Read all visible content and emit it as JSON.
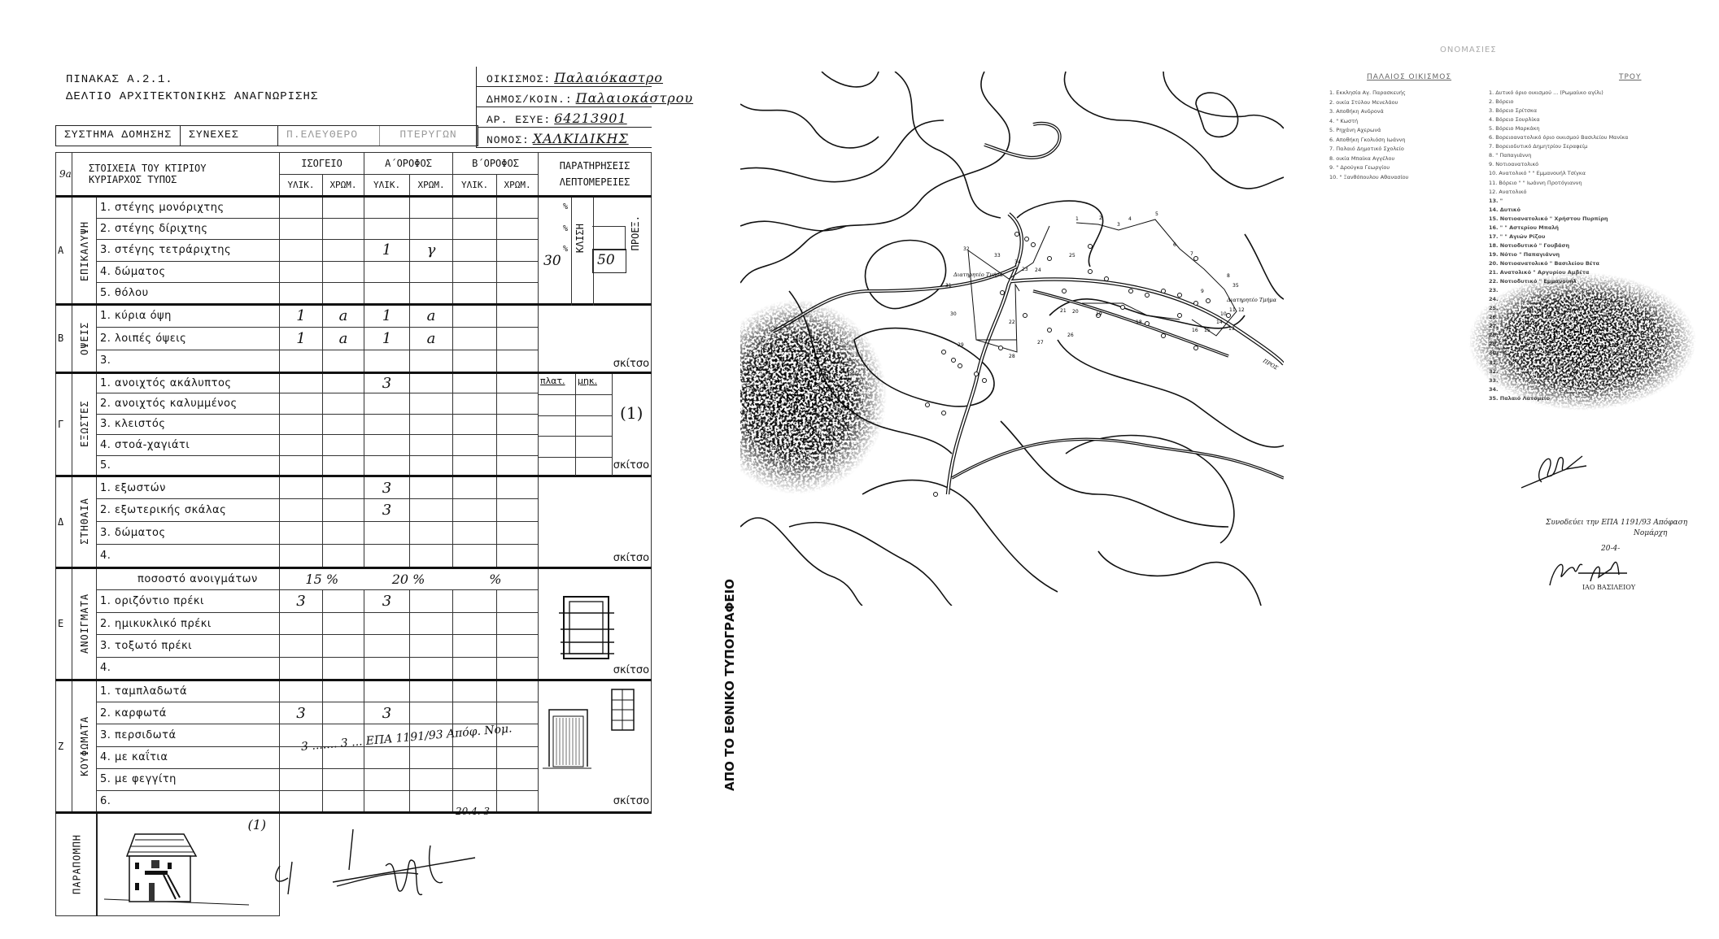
{
  "form": {
    "title": "ΠΙΝΑΚΑΣ Α.2.1.",
    "subtitle": "ΔΕΛΤΙΟ ΑΡΧΙΤΕΚΤΟΝΙΚΗΣ ΑΝΑΓΝΩΡΙΣΗΣ",
    "info": [
      {
        "label": "ΟΙΚΙΣΜΟΣ:",
        "value": "Παλαιόκαστρο"
      },
      {
        "label": "ΔΗΜΟΣ/ΚΟΙΝ.:",
        "value": "Παλαιοκάστρου"
      },
      {
        "label": "ΑΡ. ΕΣΥΕ:",
        "value": "64213901"
      },
      {
        "label": "ΝΟΜΟΣ:",
        "value": "ΧΑΛΚΙΔΙΚΗΣ"
      }
    ],
    "system": {
      "label": "ΣΥΣΤΗΜΑ ΔΟΜΗΣΗΣ",
      "options": [
        "ΣΥΝΕΧΕΣ",
        "Π.ΕΛΕΥΘΕΡΟ",
        "ΠΤΕΡΥΓΩΝ"
      ]
    },
    "header": {
      "code": "9a",
      "elements": "ΣΤΟΙΧΕΙΑ ΤΟΥ ΚΤΙΡΙΟΥ",
      "type": "ΚΥΡΙΑΡΧΟΣ ΤΥΠΟΣ",
      "floors": [
        "ΙΣΟΓΕΙΟ",
        "Α΄ΟΡΟΦΟΣ",
        "Β΄ΟΡΟΦΟΣ"
      ],
      "sub": [
        "ΥΛΙΚ.",
        "ΧΡΩΜ.",
        "ΥΛΙΚ.",
        "ΧΡΩΜ.",
        "ΥΛΙΚ.",
        "ΧΡΩΜ."
      ],
      "remarks1": "ΠΑΡΑΤΗΡΗΣΕΙΣ",
      "remarks2": "ΛΕΠΤΟΜΕΡΕΙΕΣ"
    },
    "sections": [
      {
        "letter": "Α",
        "name": "ΕΠΙΚΑΛΥΨΗ",
        "rows": [
          {
            "label": "1. στέγης μονόριχτης",
            "cells": [
              "",
              "",
              "",
              "",
              "",
              ""
            ]
          },
          {
            "label": "2. στέγης δίριχτης",
            "cells": [
              "",
              "",
              "",
              "",
              "",
              ""
            ]
          },
          {
            "label": "3. στέγης τετράριχτης",
            "cells": [
              "",
              "",
              "1",
              "γ",
              "",
              ""
            ]
          },
          {
            "label": "4. δώματος",
            "cells": [
              "",
              "",
              "",
              "",
              "",
              ""
            ]
          },
          {
            "label": "5. θόλου",
            "cells": [
              "",
              "",
              "",
              "",
              "",
              ""
            ]
          }
        ],
        "remarks": {
          "pct1": "%",
          "pct2": "%",
          "pct3": "%",
          "slope_value": "30",
          "slope_label": "ΚΛΙΣΗ",
          "overhang_value": "50",
          "overhang_label": "ΠΡΟΕΞ."
        }
      },
      {
        "letter": "Β",
        "name": "ΟΨΕΙΣ",
        "rows": [
          {
            "label": "1. κύρια όψη",
            "cells": [
              "1",
              "a",
              "1",
              "a",
              "",
              ""
            ]
          },
          {
            "label": "2. λοιπές όψεις",
            "cells": [
              "1",
              "a",
              "1",
              "a",
              "",
              ""
            ]
          },
          {
            "label": "3.",
            "cells": [
              "",
              "",
              "",
              "",
              "",
              ""
            ]
          }
        ],
        "remarks": {
          "sketch": "σκίτσο"
        }
      },
      {
        "letter": "Γ",
        "name": "ΕΞΩΣΤΕΣ",
        "rows": [
          {
            "label": "1. ανοιχτός ακάλυπτος",
            "cells": [
              "",
              "",
              "3",
              "",
              "",
              ""
            ]
          },
          {
            "label": "2. ανοιχτός καλυμμένος",
            "cells": [
              "",
              "",
              "",
              "",
              "",
              ""
            ]
          },
          {
            "label": "3. κλειστός",
            "cells": [
              "",
              "",
              "",
              "",
              "",
              ""
            ]
          },
          {
            "label": "4. στοά-χαγιάτι",
            "cells": [
              "",
              "",
              "",
              "",
              "",
              ""
            ]
          },
          {
            "label": "5.",
            "cells": [
              "",
              "",
              "",
              "",
              "",
              ""
            ]
          }
        ],
        "remarks": {
          "width": "πλατ.",
          "length": "μηκ.",
          "ref": "(1)",
          "sketch": "σκίτσο"
        }
      },
      {
        "letter": "Δ",
        "name": "ΣΤΗΘΑΙΑ",
        "rows": [
          {
            "label": "1. εξωστών",
            "cells": [
              "",
              "",
              "3",
              "",
              "",
              ""
            ]
          },
          {
            "label": "2. εξωτερικής σκάλας",
            "cells": [
              "",
              "",
              "3",
              "",
              "",
              ""
            ]
          },
          {
            "label": "3. δώματος",
            "cells": [
              "",
              "",
              "",
              "",
              "",
              ""
            ]
          },
          {
            "label": "4.",
            "cells": [
              "",
              "",
              "",
              "",
              "",
              ""
            ]
          }
        ],
        "remarks": {
          "sketch": "σκίτσο"
        }
      },
      {
        "letter": "Ε",
        "name": "ΑΝΟΙΓΜΑΤΑ",
        "rows": [
          {
            "label": "ποσοστό ανοιγμάτων",
            "pct": [
              "15 %",
              "20 %",
              "%"
            ]
          },
          {
            "label": "1. οριζόντιο πρέκι",
            "cells": [
              "3",
              "",
              "3",
              "",
              "",
              ""
            ]
          },
          {
            "label": "2. ημικυκλικό πρέκι",
            "cells": [
              "",
              "",
              "",
              "",
              "",
              ""
            ]
          },
          {
            "label": "3. τοξωτό πρέκι",
            "cells": [
              "",
              "",
              "",
              "",
              "",
              ""
            ]
          },
          {
            "label": "4.",
            "cells": [
              "",
              "",
              "",
              "",
              "",
              ""
            ]
          }
        ],
        "remarks": {
          "sketch": "σκίτσο"
        }
      },
      {
        "letter": "Ζ",
        "name": "ΚΟΥΦΩΜΑΤΑ",
        "rows": [
          {
            "label": "1. ταμπλαδωτά",
            "cells": [
              "",
              "",
              "",
              "",
              "",
              ""
            ]
          },
          {
            "label": "2. καρφωτά",
            "cells": [
              "3",
              "",
              "3",
              "",
              "",
              ""
            ]
          },
          {
            "label": "3. περσιδωτά",
            "cells": [
              "",
              "",
              "",
              "",
              "",
              ""
            ]
          },
          {
            "label": "4. με καΐτια",
            "cells": [
              "",
              "",
              "",
              "",
              "",
              ""
            ]
          },
          {
            "label": "5. με φεγγίτη",
            "cells": [
              "",
              "",
              "",
              "",
              "",
              ""
            ]
          },
          {
            "label": "6.",
            "cells": [
              "",
              "",
              "",
              "",
              "",
              ""
            ]
          }
        ],
        "remarks": {
          "sketch": "σκίτσο"
        }
      }
    ],
    "handwritten_note": "3 ....... 3 ... ΕΠΑ 1191/93 Απόφ. Νομ.",
    "handwritten_date": "20.4. 3",
    "reference": {
      "label": "ΠΑΡΑΠΟΜΠΗ",
      "ref": "(1)"
    }
  },
  "map": {
    "caption": "ΑΠΟ ΤΟ ΕΘΝΙΚΟ ΤΥΠΟΓΡΑΦΕΙΟ",
    "labels": [
      "Διατηρητέο Τμήμα",
      "Διατηρητέο Τμήμα",
      "ΠΡΟΣ"
    ],
    "point_numbers": [
      "1",
      "2",
      "3",
      "4",
      "5",
      "6",
      "7",
      "8",
      "9",
      "10",
      "11",
      "12",
      "13",
      "14",
      "15",
      "16",
      "18",
      "19",
      "20",
      "21",
      "22",
      "23",
      "24",
      "25",
      "26",
      "27",
      "28",
      "29",
      "30",
      "31",
      "32",
      "33",
      "34",
      "35"
    ]
  },
  "names": {
    "title": "ΟΝΟΜΑΣΙΕΣ",
    "old_settlement": {
      "title": "ΠΑΛΑΙΟΣ ΟΙΚΙΣΜΟΣ",
      "items": [
        "1. Εκκλησία Αγ. Παρασκευής",
        "2. οικία Στύλου Μενελάου",
        "3. Αποθήκη Ανδρονά",
        "4. \"   Κωστή",
        "5. Ρηχάνη Αχερωνά",
        "6. Αποθήκη Γκολιόση Ιωάννη",
        "7. Παλαιό Δημοτικό Σχολείο",
        "8. οικία Μπαίκα Αγγέλου",
        "9. \"  Δρούγκα Γεωργίου",
        "10. \"  Ξανθόπουλου Αθανασίου"
      ]
    },
    "boundary": {
      "title": "ΤΡΟΥ",
      "items": [
        "1. Δυτικό όριο οικισμού ... (Ρωμαίικο αγίλι)",
        "2. Βόρειο",
        "3. Βόρειο          Σρίτσκα",
        "4. Βόρειο          Σουρλίκα",
        "5. Βόρειο          Μαρκάκη",
        "6. Βορειοανατολικό όριο οικισμού   Βασιλείου Μανίκα",
        "7. Βορειοδυτικό          Δημητρίου Σεραφείμ",
        "8. \"          Παπαγιάννη",
        "9. Νοτιοανατολικό",
        "10. Ανατολικό   \"   \"   Εμμανουήλ Τσίγκα",
        "11. Βόρειο   \"   \"   Ιωάννη Προτόγιαννη",
        "12. Ανατολικό",
        "13. \"",
        "14. Δυτικό",
        "15. Νοτιοανατολικό   \"   Χρήστου Πυρπίρη",
        "16. \"   \"   Αστερίου Μπαλή",
        "17. \"   \"   Αγιών Ρίζου",
        "18. Νοτιοδυτικό   \"   Γουβάση",
        "19. Νότιο   \"   Παπαγιάννη",
        "20. Νοτιοανατολικό   \"   Βασιλείου Βέτα",
        "21. Ανατολικό   \"   Αργυρίου Αμβέτα",
        "22. Νοτιοδυτικό   \"   Εμμανουήλ",
        "23.",
        "24.",
        "25.",
        "26.",
        "27.",
        "28.",
        "29.",
        "30.",
        "31.",
        "32.",
        "33.",
        "34.",
        "35. Παλαιό Λατομείο"
      ]
    },
    "notes": {
      "line1": "Συνοδεύει την ΕΠΑ 1191/93 Απόφαση",
      "line2": "Νομάρχη",
      "date": "20-4-",
      "name": "ΙΑΟ ΒΑΣΙΛΕΙΟΥ"
    }
  },
  "colors": {
    "ink": "#111111",
    "faded_text": "#666666",
    "paper": "#ffffff"
  }
}
